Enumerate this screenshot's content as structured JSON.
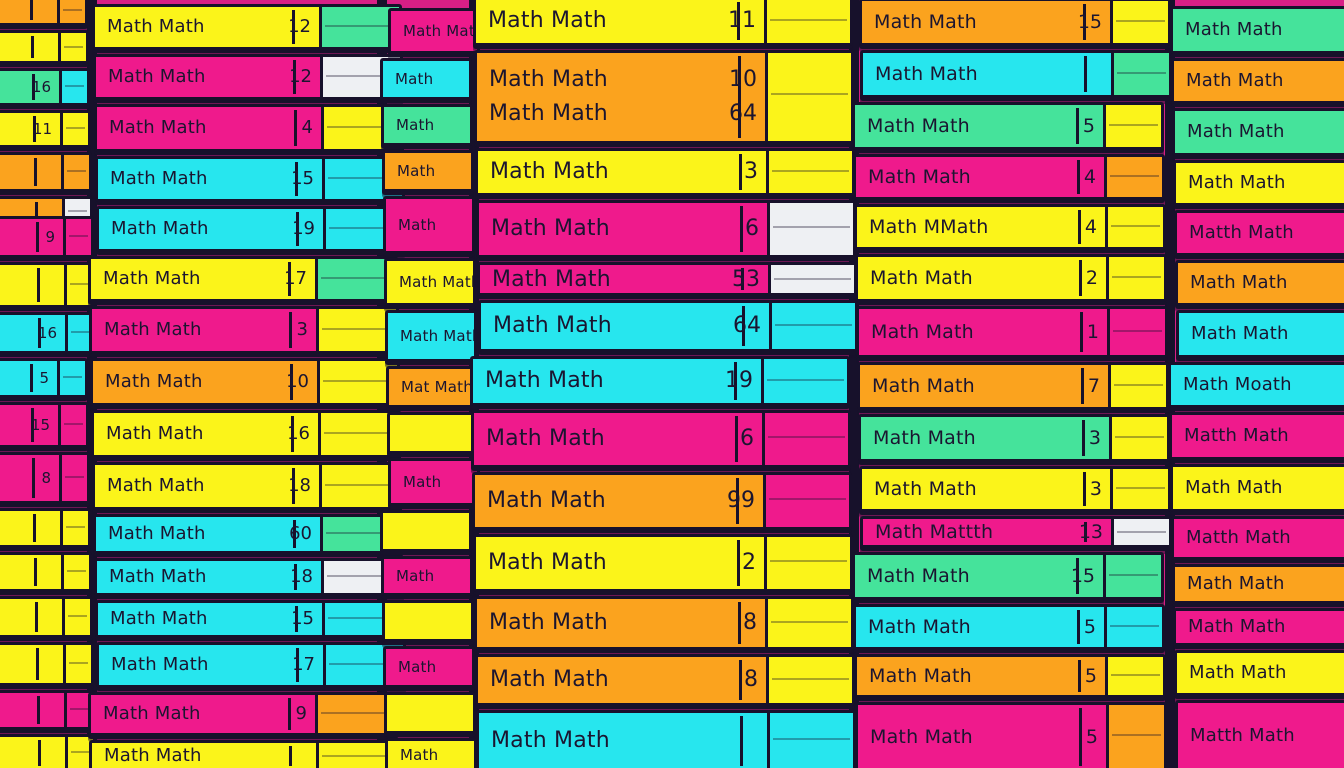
{
  "scene": {
    "palette": {
      "magenta": "#ef1a8c",
      "yellow": "#fbf41a",
      "cyan": "#27e6ee",
      "orange": "#fba31e",
      "green": "#45e39b",
      "white": "#eef0f3",
      "ink": "#17112b"
    },
    "stacks": [
      {
        "name": "stack-far-left",
        "books": [
          {
            "title": "",
            "number": "",
            "color": "orange",
            "pages": "orange"
          },
          {
            "title": "",
            "number": "",
            "color": "yellow",
            "pages": "yellow"
          },
          {
            "title": "",
            "number": "16",
            "color": "green",
            "pages": "cyan"
          },
          {
            "title": "",
            "number": "11",
            "color": "yellow",
            "pages": "yellow"
          },
          {
            "title": "",
            "number": "",
            "color": "orange",
            "pages": "orange"
          },
          {
            "title": "",
            "number": "",
            "color": "orange",
            "pages": "white"
          },
          {
            "title": "",
            "number": "9",
            "color": "magenta",
            "pages": "magenta"
          },
          {
            "title": "",
            "number": "",
            "color": "yellow",
            "pages": "yellow"
          },
          {
            "title": "",
            "number": "16",
            "color": "cyan",
            "pages": "cyan"
          },
          {
            "title": "",
            "number": "5",
            "color": "cyan",
            "pages": "cyan"
          },
          {
            "title": "",
            "number": "15",
            "color": "magenta",
            "pages": "magenta"
          },
          {
            "title": "",
            "number": "8",
            "color": "magenta",
            "pages": "magenta"
          },
          {
            "title": "",
            "number": "",
            "color": "yellow",
            "pages": "yellow"
          },
          {
            "title": "",
            "number": "",
            "color": "yellow",
            "pages": "yellow"
          },
          {
            "title": "",
            "number": "",
            "color": "yellow",
            "pages": "yellow"
          },
          {
            "title": "",
            "number": "",
            "color": "yellow",
            "pages": "yellow"
          },
          {
            "title": "",
            "number": "",
            "color": "magenta",
            "pages": "magenta"
          },
          {
            "title": "",
            "number": "",
            "color": "yellow",
            "pages": "yellow"
          }
        ]
      },
      {
        "name": "stack-left",
        "books": [
          {
            "title": "Math Math",
            "number": "12",
            "color": "yellow",
            "pages": "green"
          },
          {
            "title": "Math Math",
            "number": "12",
            "color": "magenta",
            "pages": "white"
          },
          {
            "title": "Math Math",
            "number": "4",
            "color": "magenta",
            "pages": "yellow"
          },
          {
            "title": "Math Math",
            "number": "15",
            "color": "cyan",
            "pages": "cyan"
          },
          {
            "title": "Math Math",
            "number": "19",
            "color": "cyan",
            "pages": "cyan"
          },
          {
            "title": "Math Math",
            "number": "17",
            "color": "yellow",
            "pages": "green"
          },
          {
            "title": "Math Math",
            "number": "3",
            "color": "magenta",
            "pages": "yellow"
          },
          {
            "title": "Math Math",
            "number": "10",
            "color": "orange",
            "pages": "yellow"
          },
          {
            "title": "Math Math",
            "number": "16",
            "color": "yellow",
            "pages": "yellow"
          },
          {
            "title": "Math Math",
            "number": "18",
            "color": "yellow",
            "pages": "yellow"
          },
          {
            "title": "Math Math",
            "number": "60",
            "color": "cyan",
            "pages": "green"
          },
          {
            "title": "Math Math",
            "number": "18",
            "color": "cyan",
            "pages": "white"
          },
          {
            "title": "Math Math",
            "number": "15",
            "color": "cyan",
            "pages": "cyan"
          },
          {
            "title": "Math Math",
            "number": "17",
            "color": "cyan",
            "pages": "cyan"
          },
          {
            "title": "Math Math",
            "number": "9",
            "color": "magenta",
            "pages": "orange"
          },
          {
            "title": "Math Math",
            "number": "",
            "color": "yellow",
            "pages": "yellow"
          }
        ]
      },
      {
        "name": "stack-middle-narrow",
        "books": [
          {
            "title": "Math Math",
            "number": "",
            "color": "magenta",
            "pages": "magenta"
          },
          {
            "title": "Math",
            "number": "",
            "color": "cyan",
            "pages": "cyan"
          },
          {
            "title": "Math",
            "number": "",
            "color": "green",
            "pages": "green"
          },
          {
            "title": "Math",
            "number": "",
            "color": "orange",
            "pages": "orange"
          },
          {
            "title": "Math",
            "number": "",
            "color": "magenta",
            "pages": "magenta"
          },
          {
            "title": "Math Math",
            "number": "",
            "color": "yellow",
            "pages": "yellow"
          },
          {
            "title": "Math Math",
            "number": "",
            "color": "cyan",
            "pages": "cyan"
          },
          {
            "title": "Mat Math",
            "number": "",
            "color": "orange",
            "pages": "orange"
          },
          {
            "title": "",
            "number": "",
            "color": "yellow",
            "pages": "yellow"
          },
          {
            "title": "Math",
            "number": "",
            "color": "magenta",
            "pages": "magenta"
          },
          {
            "title": "",
            "number": "",
            "color": "yellow",
            "pages": "yellow"
          },
          {
            "title": "Math",
            "number": "",
            "color": "magenta",
            "pages": "magenta"
          },
          {
            "title": "",
            "number": "",
            "color": "yellow",
            "pages": "yellow"
          },
          {
            "title": "Math",
            "number": "",
            "color": "magenta",
            "pages": "magenta"
          },
          {
            "title": "",
            "number": "",
            "color": "yellow",
            "pages": "yellow"
          },
          {
            "title": "Math",
            "number": "",
            "color": "yellow",
            "pages": "yellow"
          }
        ]
      },
      {
        "name": "stack-center",
        "books": [
          {
            "title": "Math Math",
            "number": "11",
            "color": "yellow",
            "pages": "yellow"
          },
          {
            "title": "Math Math\nMath Math",
            "number": "10\n64",
            "color": "orange",
            "pages": "yellow"
          },
          {
            "title": "Math Math",
            "number": "3",
            "color": "yellow",
            "pages": "yellow"
          },
          {
            "title": "Math Math",
            "number": "6",
            "color": "magenta",
            "pages": "white"
          },
          {
            "title": "Math Math",
            "number": "53",
            "color": "magenta",
            "pages": "white"
          },
          {
            "title": "Math Math",
            "number": "64",
            "color": "cyan",
            "pages": "cyan"
          },
          {
            "title": "Math Math",
            "number": "19",
            "color": "cyan",
            "pages": "cyan"
          },
          {
            "title": "Math Math",
            "number": "6",
            "color": "magenta",
            "pages": "magenta"
          },
          {
            "title": "Math Math",
            "number": "99",
            "color": "orange",
            "pages": "magenta"
          },
          {
            "title": "Math Math",
            "number": "2",
            "color": "yellow",
            "pages": "yellow"
          },
          {
            "title": "Math Math",
            "number": "8",
            "color": "orange",
            "pages": "yellow"
          },
          {
            "title": "Math Math",
            "number": "8",
            "color": "orange",
            "pages": "yellow"
          },
          {
            "title": "Math Math",
            "number": "",
            "color": "cyan",
            "pages": "cyan"
          }
        ]
      },
      {
        "name": "stack-right",
        "books": [
          {
            "title": "Math Math",
            "number": "15",
            "color": "orange",
            "pages": "yellow"
          },
          {
            "title": "Math Math",
            "number": "",
            "color": "cyan",
            "pages": "green"
          },
          {
            "title": "Math Math",
            "number": "5",
            "color": "green",
            "pages": "yellow"
          },
          {
            "title": "Math Math",
            "number": "4",
            "color": "magenta",
            "pages": "orange"
          },
          {
            "title": "Math MMath",
            "number": "4",
            "color": "yellow",
            "pages": "yellow"
          },
          {
            "title": "Math Math",
            "number": "2",
            "color": "yellow",
            "pages": "yellow"
          },
          {
            "title": "Math Math",
            "number": "1",
            "color": "magenta",
            "pages": "magenta"
          },
          {
            "title": "Math Math",
            "number": "7",
            "color": "orange",
            "pages": "yellow"
          },
          {
            "title": "Math Math",
            "number": "3",
            "color": "green",
            "pages": "yellow"
          },
          {
            "title": "Math Math",
            "number": "3",
            "color": "yellow",
            "pages": "yellow"
          },
          {
            "title": "Math Mattth",
            "number": "13",
            "color": "magenta",
            "pages": "white"
          },
          {
            "title": "Math Math",
            "number": "15",
            "color": "green",
            "pages": "green"
          },
          {
            "title": "Math Math",
            "number": "5",
            "color": "cyan",
            "pages": "cyan"
          },
          {
            "title": "Math Math",
            "number": "5",
            "color": "orange",
            "pages": "yellow"
          },
          {
            "title": "Math Math",
            "number": "5",
            "color": "magenta",
            "pages": "orange"
          }
        ]
      },
      {
        "name": "stack-far-right",
        "books": [
          {
            "title": "Math Math",
            "number": "",
            "color": "green",
            "pages": "green"
          },
          {
            "title": "Math Math",
            "number": "",
            "color": "orange",
            "pages": "orange"
          },
          {
            "title": "Math Math",
            "number": "",
            "color": "green",
            "pages": "green"
          },
          {
            "title": "Math Math",
            "number": "",
            "color": "yellow",
            "pages": "yellow"
          },
          {
            "title": "Matth Math",
            "number": "",
            "color": "magenta",
            "pages": "magenta"
          },
          {
            "title": "Math Math",
            "number": "",
            "color": "orange",
            "pages": "orange"
          },
          {
            "title": "Math Math",
            "number": "",
            "color": "cyan",
            "pages": "cyan"
          },
          {
            "title": "Math Moath",
            "number": "",
            "color": "cyan",
            "pages": "cyan"
          },
          {
            "title": "Matth Math",
            "number": "",
            "color": "magenta",
            "pages": "magenta"
          },
          {
            "title": "Math Math",
            "number": "",
            "color": "yellow",
            "pages": "yellow"
          },
          {
            "title": "Matth Math",
            "number": "",
            "color": "magenta",
            "pages": "magenta"
          },
          {
            "title": "Math Math",
            "number": "",
            "color": "orange",
            "pages": "orange"
          },
          {
            "title": "Math Math",
            "number": "",
            "color": "magenta",
            "pages": "magenta"
          },
          {
            "title": "Math Math",
            "number": "",
            "color": "yellow",
            "pages": "yellow"
          },
          {
            "title": "Matth Math",
            "number": "",
            "color": "magenta",
            "pages": "magenta"
          }
        ]
      }
    ]
  }
}
